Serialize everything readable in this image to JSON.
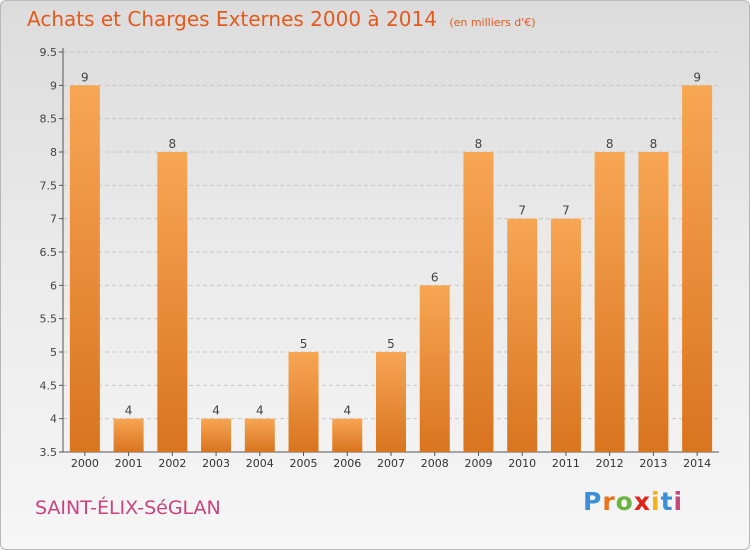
{
  "header": {
    "title": "Achats et Charges Externes 2000 à 2014",
    "subtitle": "(en milliers d'€)"
  },
  "footer": {
    "commune": "SAINT-ÉLIX-SéGLAN",
    "logo_text": "Proxiti"
  },
  "logo_colors": [
    "#3a8fd6",
    "#e8741e",
    "#6db33f",
    "#e2231a",
    "#f2b01e",
    "#3a8fd6",
    "#c8447d"
  ],
  "colors": {
    "bar_top": "#f7a654",
    "bar_bottom": "#d9741f",
    "accent": "#e35a1c",
    "grid": "#c8c8c8",
    "axis": "#555555",
    "label": "#444444"
  },
  "chart_data": {
    "type": "bar",
    "title": "Achats et Charges Externes 2000 à 2014",
    "subtitle": "(en milliers d'€)",
    "categories": [
      "2000",
      "2001",
      "2002",
      "2003",
      "2004",
      "2005",
      "2006",
      "2007",
      "2008",
      "2009",
      "2010",
      "2011",
      "2012",
      "2013",
      "2014"
    ],
    "values": [
      9,
      4,
      8,
      4,
      4,
      5,
      4,
      5,
      6,
      8,
      7,
      7,
      8,
      8,
      9
    ],
    "ylim": [
      3.5,
      9.5
    ],
    "yticks": [
      "3.5",
      "4",
      "4.5",
      "5",
      "5.5",
      "6",
      "6.5",
      "7",
      "7.5",
      "8",
      "8.5",
      "9",
      "9.5"
    ],
    "grid": "horizontal dashed",
    "legend": "none"
  }
}
